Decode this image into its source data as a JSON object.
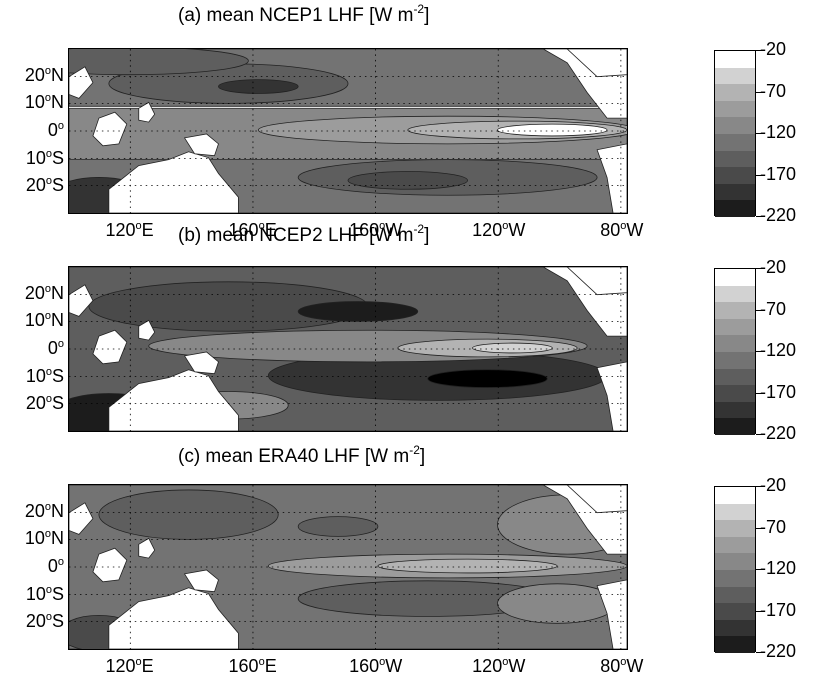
{
  "chart_data": [
    {
      "type": "heatmap",
      "title": "(a) mean NCEP1 LHF [W m",
      "title_exp": "-2",
      "title_close": "]",
      "xticks": [
        {
          "v": "120",
          "u": "o",
          "h": "E"
        },
        {
          "v": "160",
          "u": "o",
          "h": "E"
        },
        {
          "v": "160",
          "u": "o",
          "h": "W"
        },
        {
          "v": "120",
          "u": "o",
          "h": "W"
        },
        {
          "v": "80",
          "u": "o",
          "h": "W"
        }
      ],
      "yticks": [
        {
          "v": "20",
          "u": "o",
          "h": "N"
        },
        {
          "v": "10",
          "u": "o",
          "h": "N"
        },
        {
          "v": "0",
          "u": "o",
          "h": ""
        },
        {
          "v": "10",
          "u": "o",
          "h": "S"
        },
        {
          "v": "20",
          "u": "o",
          "h": "S"
        }
      ],
      "xlim": [
        "100E",
        "78W"
      ],
      "ylim": [
        "30S",
        "30N"
      ],
      "grid": true,
      "colorbar": {
        "levels": [
          -220,
          -200,
          -180,
          -160,
          -140,
          -120,
          -100,
          -80,
          -60,
          -40,
          -20
        ],
        "tick_labels": [
          -20,
          -70,
          -120,
          -170,
          -220
        ]
      }
    },
    {
      "type": "heatmap",
      "title": "(b) mean NCEP2 LHF [W m",
      "title_exp": "-2",
      "title_close": "]",
      "xticks": [],
      "yticks": [
        {
          "v": "20",
          "u": "o",
          "h": "N"
        },
        {
          "v": "10",
          "u": "o",
          "h": "N"
        },
        {
          "v": "0",
          "u": "o",
          "h": ""
        },
        {
          "v": "10",
          "u": "o",
          "h": "S"
        },
        {
          "v": "20",
          "u": "o",
          "h": "S"
        }
      ],
      "grid": true,
      "colorbar": {
        "levels": [
          -220,
          -200,
          -180,
          -160,
          -140,
          -120,
          -100,
          -80,
          -60,
          -40,
          -20
        ],
        "tick_labels": [
          -20,
          -70,
          -120,
          -170,
          -220
        ]
      }
    },
    {
      "type": "heatmap",
      "title": "(c) mean ERA40 LHF [W m",
      "title_exp": "-2",
      "title_close": "]",
      "xticks": [
        {
          "v": "120",
          "u": "o",
          "h": "E"
        },
        {
          "v": "160",
          "u": "o",
          "h": "E"
        },
        {
          "v": "160",
          "u": "o",
          "h": "W"
        },
        {
          "v": "120",
          "u": "o",
          "h": "W"
        },
        {
          "v": "80",
          "u": "o",
          "h": "W"
        }
      ],
      "yticks": [
        {
          "v": "20",
          "u": "o",
          "h": "N"
        },
        {
          "v": "10",
          "u": "o",
          "h": "N"
        },
        {
          "v": "0",
          "u": "o",
          "h": ""
        },
        {
          "v": "10",
          "u": "o",
          "h": "S"
        },
        {
          "v": "20",
          "u": "o",
          "h": "S"
        }
      ],
      "grid": true,
      "colorbar": {
        "levels": [
          -220,
          -200,
          -180,
          -160,
          -140,
          -120,
          -100,
          -80,
          -60,
          -40,
          -20
        ],
        "tick_labels": [
          -20,
          -70,
          -120,
          -170,
          -220
        ]
      }
    }
  ],
  "colors": {
    "bands": [
      "#000000",
      "#1c1c1c",
      "#333333",
      "#4a4a4a",
      "#5e5e5e",
      "#737373",
      "#888888",
      "#9c9c9c",
      "#b3b3b3",
      "#d2d2d2",
      "#ffffff"
    ],
    "land": "#ffffff",
    "grid": "#000000"
  }
}
